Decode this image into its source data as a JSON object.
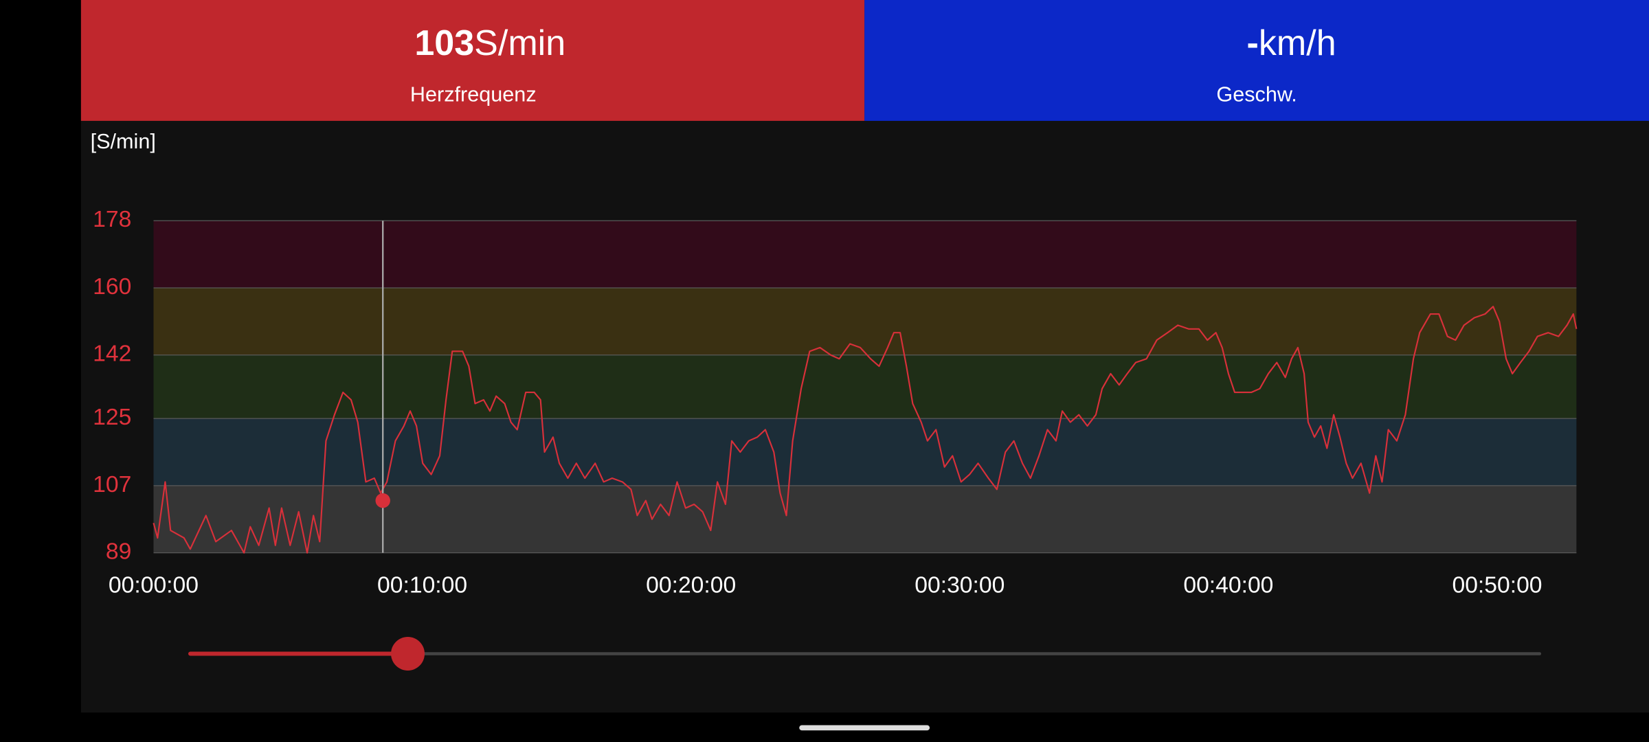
{
  "header": {
    "heart_rate": {
      "unit": "S/min",
      "label": "Herzfrequenz"
    },
    "speed": {
      "value": "-",
      "unit": "km/h",
      "label": "Geschw."
    }
  },
  "chart_data": {
    "type": "line",
    "y_label": "[S/min]",
    "color": "#d8303a",
    "x": [
      0,
      9,
      26,
      38,
      68,
      82,
      117,
      139,
      174,
      202,
      216,
      235,
      258,
      272,
      286,
      305,
      324,
      343,
      357,
      371,
      385,
      404,
      423,
      441,
      456,
      474,
      493,
      507,
      521,
      540,
      559,
      573,
      587,
      601,
      620,
      639,
      653,
      667,
      690,
      704,
      718,
      737,
      751,
      765,
      784,
      798,
      812,
      831,
      850,
      864,
      873,
      892,
      906,
      925,
      944,
      963,
      986,
      1005,
      1024,
      1047,
      1066,
      1080,
      1099,
      1113,
      1132,
      1151,
      1169,
      1188,
      1207,
      1226,
      1244,
      1259,
      1277,
      1291,
      1310,
      1329,
      1348,
      1366,
      1385,
      1399,
      1413,
      1427,
      1446,
      1465,
      1488,
      1512,
      1531,
      1555,
      1578,
      1601,
      1620,
      1639,
      1653,
      1667,
      1681,
      1695,
      1714,
      1728,
      1747,
      1766,
      1784,
      1803,
      1822,
      1841,
      1864,
      1883,
      1902,
      1921,
      1940,
      1958,
      1977,
      1996,
      2015,
      2029,
      2047,
      2066,
      2085,
      2104,
      2118,
      2137,
      2156,
      2174,
      2193,
      2217,
      2240,
      2264,
      2287,
      2311,
      2334,
      2353,
      2372,
      2386,
      2400,
      2414,
      2433,
      2451,
      2470,
      2489,
      2508,
      2527,
      2541,
      2555,
      2569,
      2578,
      2592,
      2606,
      2620,
      2635,
      2649,
      2663,
      2677,
      2696,
      2715,
      2729,
      2743,
      2757,
      2776,
      2795,
      2813,
      2827,
      2851,
      2870,
      2889,
      2907,
      2926,
      2949,
      2973,
      2991,
      3005,
      3020,
      3034,
      3052,
      3071,
      3090,
      3114,
      3137,
      3156,
      3170,
      3177
    ],
    "values": [
      97,
      93,
      108,
      95,
      93,
      90,
      99,
      92,
      95,
      89,
      96,
      91,
      101,
      91,
      101,
      91,
      100,
      89,
      99,
      92,
      119,
      126,
      132,
      130,
      124,
      108,
      109,
      105,
      108,
      119,
      123,
      127,
      123,
      113,
      110,
      115,
      130,
      143,
      143,
      139,
      129,
      130,
      127,
      131,
      129,
      124,
      122,
      132,
      132,
      130,
      116,
      120,
      113,
      109,
      113,
      109,
      113,
      108,
      109,
      108,
      106,
      99,
      103,
      98,
      102,
      99,
      108,
      101,
      102,
      100,
      95,
      108,
      102,
      119,
      116,
      119,
      120,
      122,
      116,
      105,
      99,
      119,
      133,
      143,
      144,
      142,
      141,
      145,
      144,
      141,
      139,
      144,
      148,
      148,
      139,
      129,
      124,
      119,
      122,
      112,
      115,
      108,
      110,
      113,
      109,
      106,
      116,
      119,
      113,
      109,
      115,
      122,
      119,
      127,
      124,
      126,
      123,
      126,
      133,
      137,
      134,
      137,
      140,
      141,
      146,
      148,
      150,
      149,
      149,
      146,
      148,
      144,
      137,
      132,
      132,
      132,
      133,
      137,
      140,
      136,
      141,
      144,
      137,
      124,
      120,
      123,
      117,
      126,
      120,
      113,
      109,
      113,
      105,
      115,
      108,
      122,
      119,
      126,
      141,
      148,
      153,
      153,
      147,
      146,
      150,
      152,
      153,
      155,
      151,
      141,
      137,
      140,
      143,
      147,
      148,
      147,
      150,
      153,
      149
    ],
    "xlim": [
      0,
      3177
    ],
    "ylim": [
      89,
      178
    ],
    "xticks": [
      {
        "value": 0,
        "label": "00:00:00"
      },
      {
        "value": 600,
        "label": "00:10:00"
      },
      {
        "value": 1200,
        "label": "00:20:00"
      },
      {
        "value": 1800,
        "label": "00:30:00"
      },
      {
        "value": 2400,
        "label": "00:40:00"
      },
      {
        "value": 3000,
        "label": "00:50:00"
      }
    ],
    "yticks": [
      89,
      107,
      125,
      142,
      160,
      178
    ],
    "zone_colors": [
      "#353535",
      "#1c2d38",
      "#1f2e17",
      "#3a3012",
      "#320b1a"
    ],
    "cursor": {
      "x": 512,
      "y": 103
    }
  }
}
